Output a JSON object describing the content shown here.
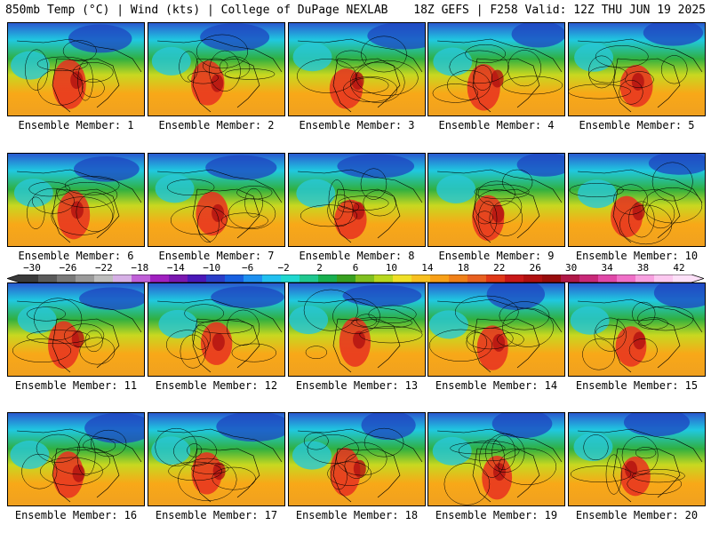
{
  "header": {
    "left": "850mb Temp (°C) | Wind (kts) | College of DuPage NEXLAB",
    "right": "18Z GEFS | F258 Valid: 12Z THU JUN 19 2025"
  },
  "members": [
    {
      "label": "Ensemble Member: 1"
    },
    {
      "label": "Ensemble Member: 2"
    },
    {
      "label": "Ensemble Member: 3"
    },
    {
      "label": "Ensemble Member: 4"
    },
    {
      "label": "Ensemble Member: 5"
    },
    {
      "label": "Ensemble Member: 6"
    },
    {
      "label": "Ensemble Member: 7"
    },
    {
      "label": "Ensemble Member: 8"
    },
    {
      "label": "Ensemble Member: 9"
    },
    {
      "label": "Ensemble Member: 10"
    },
    {
      "label": "Ensemble Member: 11"
    },
    {
      "label": "Ensemble Member: 12"
    },
    {
      "label": "Ensemble Member: 13"
    },
    {
      "label": "Ensemble Member: 14"
    },
    {
      "label": "Ensemble Member: 15"
    },
    {
      "label": "Ensemble Member: 16"
    },
    {
      "label": "Ensemble Member: 17"
    },
    {
      "label": "Ensemble Member: 18"
    },
    {
      "label": "Ensemble Member: 19"
    },
    {
      "label": "Ensemble Member: 20"
    }
  ],
  "colorbar": {
    "ticks": [
      "−30",
      "−26",
      "−22",
      "−18",
      "−14",
      "−10",
      "−6",
      "−2",
      "2",
      "6",
      "10",
      "14",
      "18",
      "22",
      "26",
      "30",
      "34",
      "38",
      "42"
    ],
    "colors": [
      "#3a3a3a",
      "#5a5a5a",
      "#7a7a7a",
      "#9a9a9a",
      "#bdbdbd",
      "#d6b0e6",
      "#c060d8",
      "#a020c0",
      "#7a18b0",
      "#4a18b8",
      "#2a3ec8",
      "#1860e0",
      "#1e90f0",
      "#22c0f0",
      "#20d8d0",
      "#20c890",
      "#18b050",
      "#38a020",
      "#80c020",
      "#b8d820",
      "#f0e028",
      "#f8c020",
      "#f8a018",
      "#f08018",
      "#e86020",
      "#e03818",
      "#c81818",
      "#b01010",
      "#980c0c",
      "#b01848",
      "#c82878",
      "#e048a8",
      "#f070c8",
      "#f8a0e0",
      "#fcc8f0",
      "#fde0f8"
    ]
  }
}
